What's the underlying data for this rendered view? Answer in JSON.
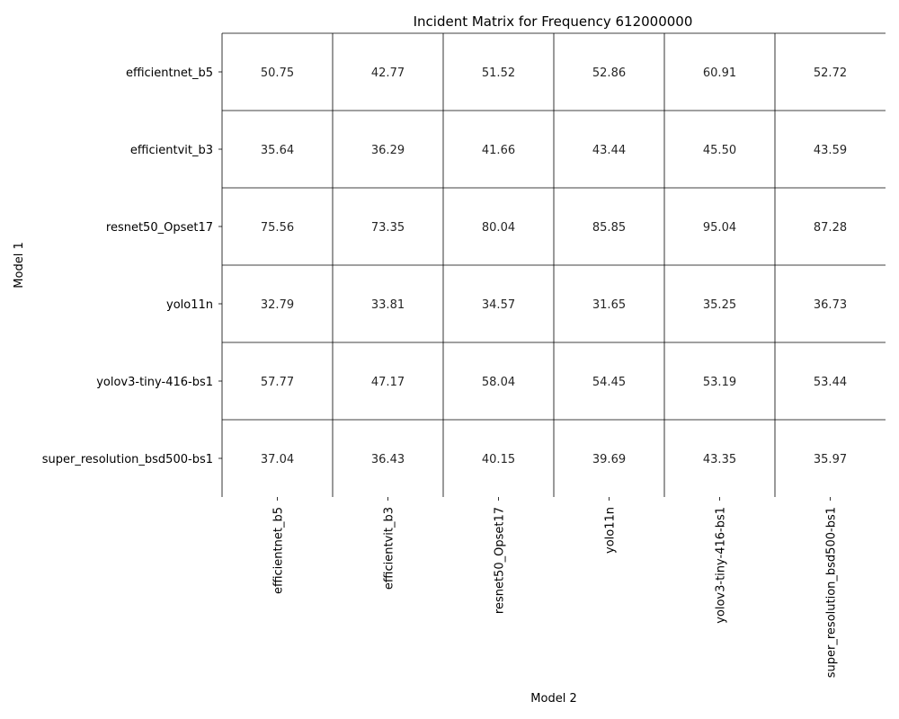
{
  "chart_data": {
    "type": "heatmap",
    "title": "Incident Matrix for Frequency 612000000",
    "xlabel": "Model 2",
    "ylabel": "Model 1",
    "x_categories": [
      "efficientnet_b5",
      "efficientvit_b3",
      "resnet50_Opset17",
      "yolo11n",
      "yolov3-tiny-416-bs1",
      "super_resolution_bsd500-bs1"
    ],
    "y_categories": [
      "efficientnet_b5",
      "efficientvit_b3",
      "resnet50_Opset17",
      "yolo11n",
      "yolov3-tiny-416-bs1",
      "super_resolution_bsd500-bs1"
    ],
    "values": [
      [
        "50.75",
        "42.77",
        "51.52",
        "52.86",
        "60.91",
        "52.72"
      ],
      [
        "35.64",
        "36.29",
        "41.66",
        "43.44",
        "45.50",
        "43.59"
      ],
      [
        "75.56",
        "73.35",
        "80.04",
        "85.85",
        "95.04",
        "87.28"
      ],
      [
        "32.79",
        "33.81",
        "34.57",
        "31.65",
        "35.25",
        "36.73"
      ],
      [
        "57.77",
        "47.17",
        "58.04",
        "54.45",
        "53.19",
        "53.44"
      ],
      [
        "37.04",
        "36.43",
        "40.15",
        "39.69",
        "43.35",
        "35.97"
      ]
    ],
    "cell_fill": "#ffffff",
    "grid_line_color": "#000000",
    "colorbar": false
  }
}
